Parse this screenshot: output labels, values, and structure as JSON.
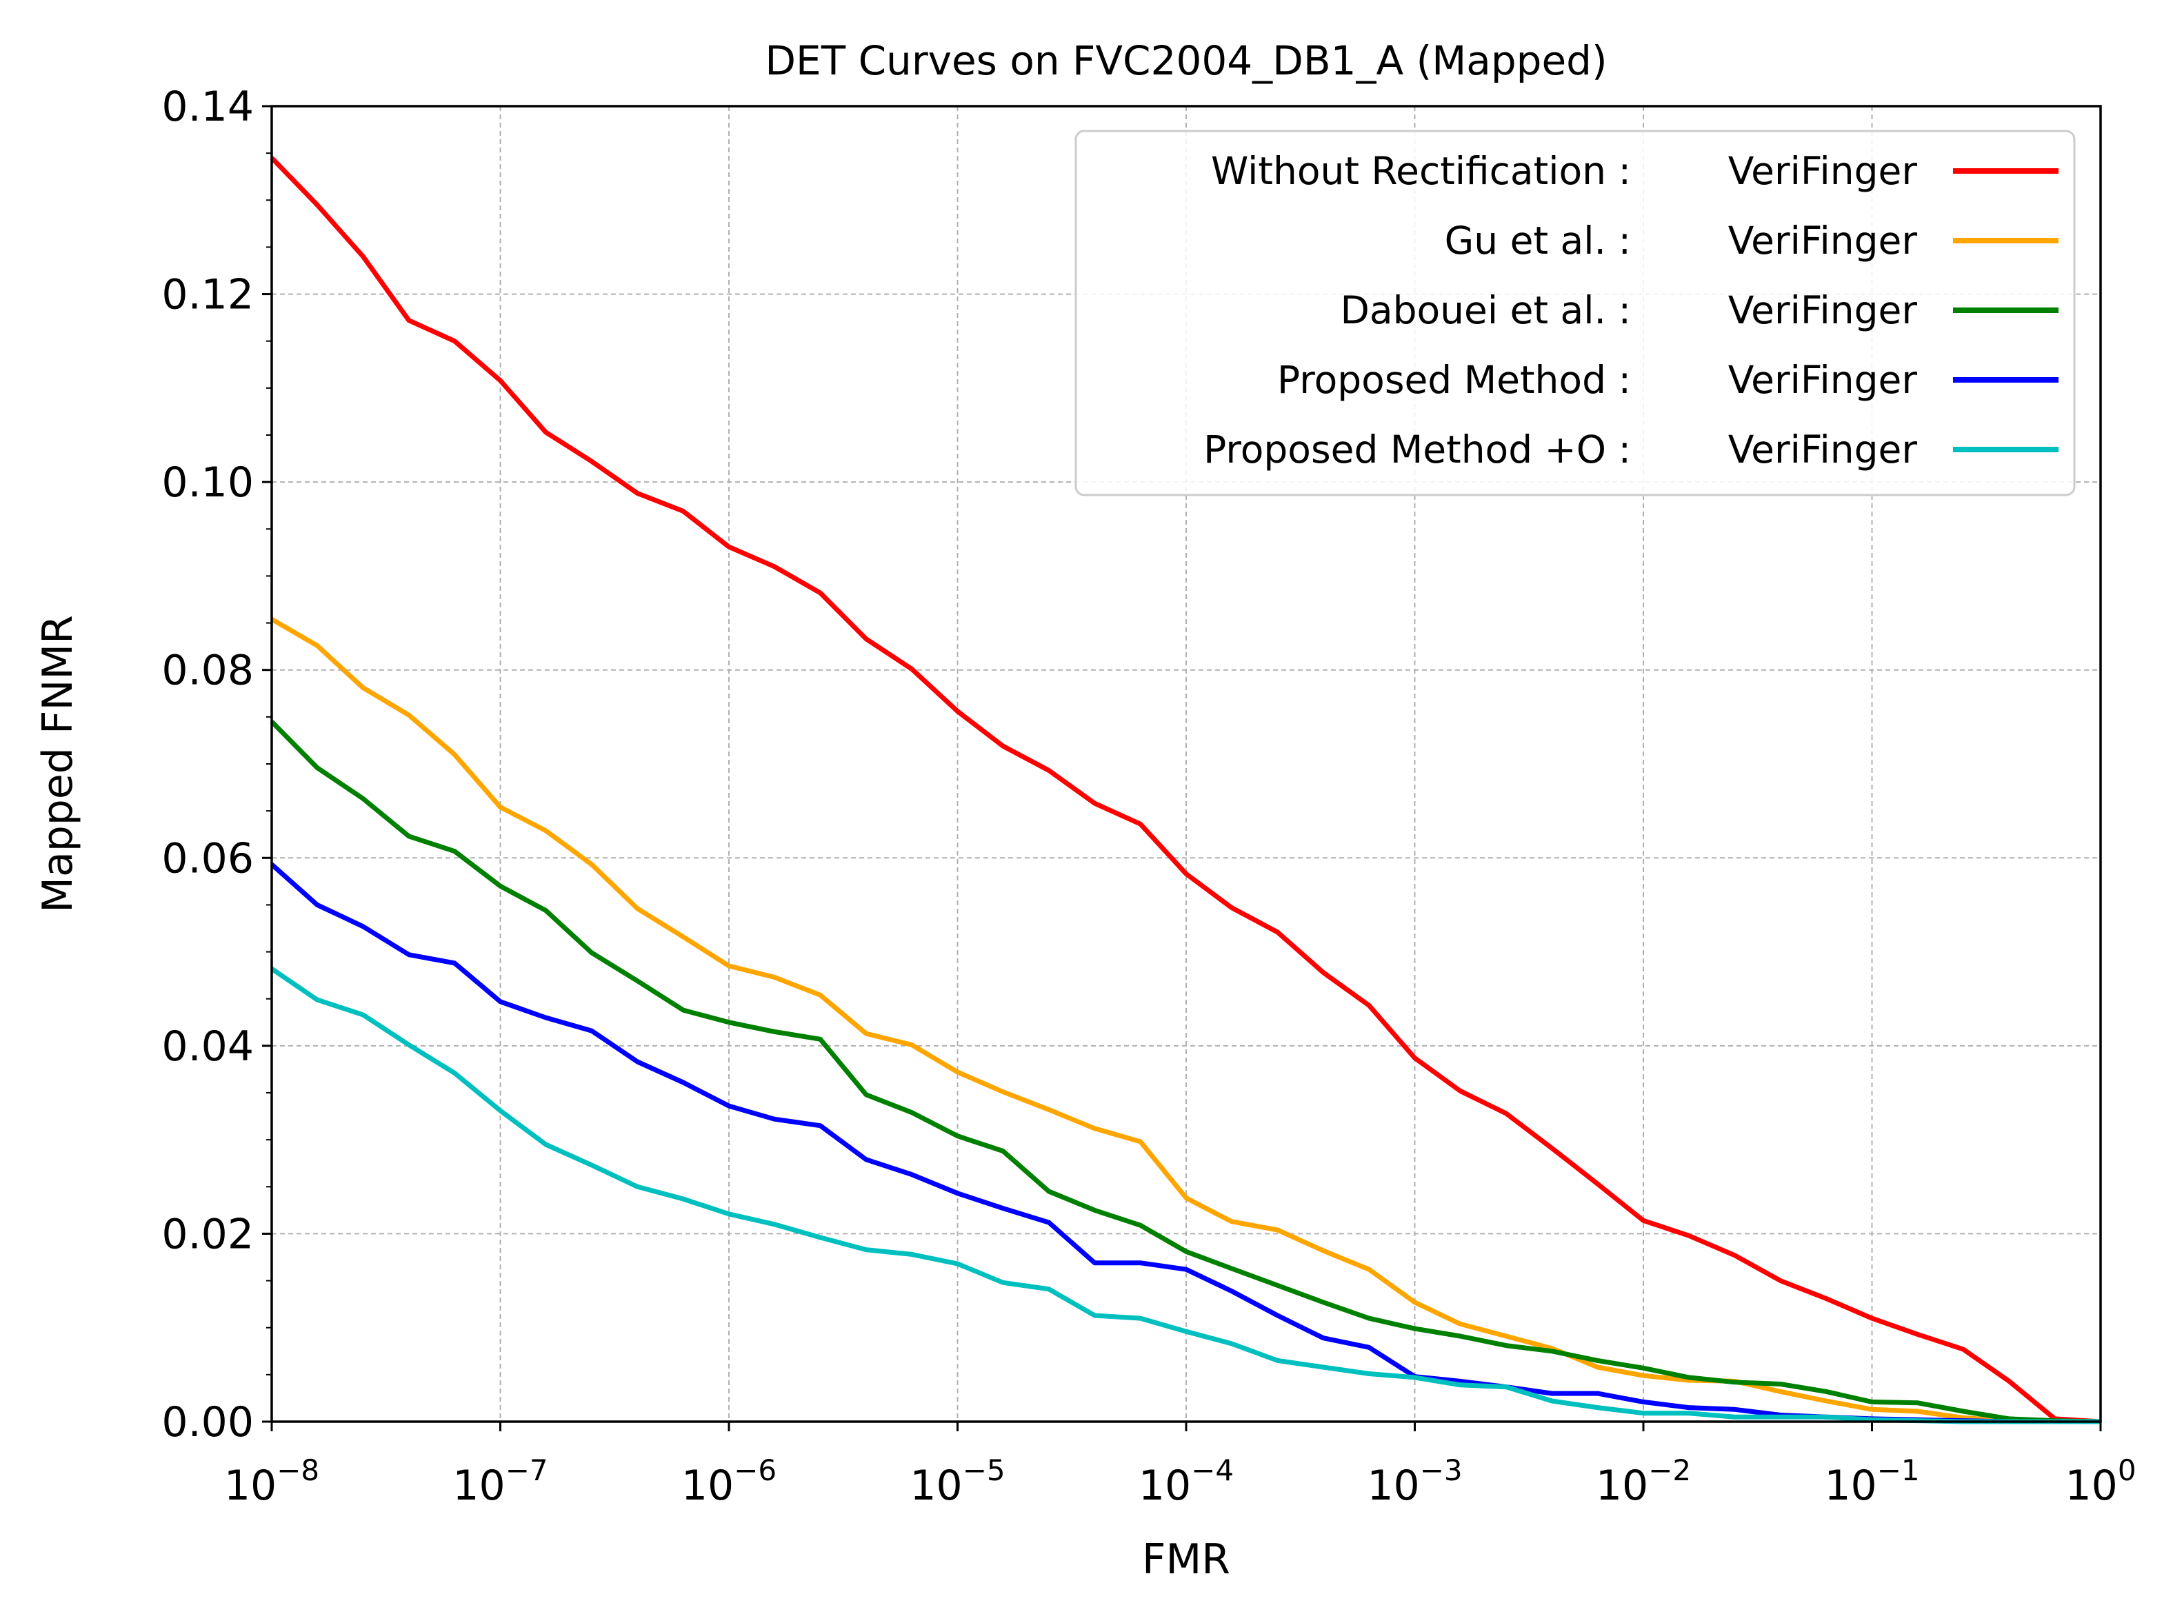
{
  "chart_data": {
    "type": "line",
    "title": "DET Curves on FVC2004_DB1_A (Mapped)",
    "xlabel": "FMR",
    "ylabel": "Mapped FNMR",
    "x_scale": "log",
    "xlim": [
      1e-08,
      1
    ],
    "ylim": [
      0,
      0.14
    ],
    "x_tick_labels": [
      {
        "base": "10",
        "exp": "−8"
      },
      {
        "base": "10",
        "exp": "−7"
      },
      {
        "base": "10",
        "exp": "−6"
      },
      {
        "base": "10",
        "exp": "−5"
      },
      {
        "base": "10",
        "exp": "−4"
      },
      {
        "base": "10",
        "exp": "−3"
      },
      {
        "base": "10",
        "exp": "−2"
      },
      {
        "base": "10",
        "exp": "−1"
      },
      {
        "base": "10",
        "exp": "0"
      }
    ],
    "y_tick_labels": [
      "0.00",
      "0.02",
      "0.04",
      "0.06",
      "0.08",
      "0.10",
      "0.12",
      "0.14"
    ],
    "grid": true,
    "legend_position": "top-right",
    "x": [
      1e-08,
      1.58e-08,
      2.51e-08,
      3.98e-08,
      6.31e-08,
      1e-07,
      1.58e-07,
      2.51e-07,
      3.98e-07,
      6.31e-07,
      1e-06,
      1.58e-06,
      2.51e-06,
      3.98e-06,
      6.31e-06,
      1e-05,
      1.58e-05,
      2.51e-05,
      3.98e-05,
      6.31e-05,
      0.0001,
      0.000158,
      0.000251,
      0.000398,
      0.000631,
      0.001,
      0.00158,
      0.00251,
      0.00398,
      0.00631,
      0.01,
      0.0158,
      0.0251,
      0.0398,
      0.0631,
      0.1,
      0.158,
      0.251,
      0.398,
      0.631,
      1
    ],
    "series": [
      {
        "name": "Without Rectification :",
        "matcher": "VeriFinger",
        "color": "#ff0000",
        "values": [
          0.1345,
          0.1295,
          0.124,
          0.1172,
          0.115,
          0.1108,
          0.1053,
          0.1022,
          0.0988,
          0.0969,
          0.0931,
          0.091,
          0.0882,
          0.0833,
          0.0801,
          0.0756,
          0.0719,
          0.0693,
          0.0658,
          0.0636,
          0.0583,
          0.0547,
          0.0521,
          0.0478,
          0.0443,
          0.0387,
          0.0352,
          0.0328,
          0.0291,
          0.0253,
          0.0214,
          0.0198,
          0.0177,
          0.015,
          0.0131,
          0.011,
          0.0093,
          0.0077,
          0.0043,
          0.0003,
          0.0
        ]
      },
      {
        "name": "Gu et al. :",
        "matcher": "VeriFinger",
        "color": "#ffa500",
        "values": [
          0.0854,
          0.0826,
          0.0781,
          0.0752,
          0.071,
          0.0654,
          0.0629,
          0.0593,
          0.0546,
          0.0516,
          0.0485,
          0.0473,
          0.0454,
          0.0413,
          0.0401,
          0.0372,
          0.0351,
          0.0332,
          0.0312,
          0.0298,
          0.0238,
          0.0213,
          0.0204,
          0.0182,
          0.0162,
          0.0127,
          0.0104,
          0.0091,
          0.0078,
          0.0058,
          0.0049,
          0.0044,
          0.0043,
          0.0032,
          0.0022,
          0.0013,
          0.0011,
          0.0004,
          0.0001,
          0.0,
          0.0
        ]
      },
      {
        "name": "Dabouei et al. :",
        "matcher": "VeriFinger",
        "color": "#008000",
        "values": [
          0.0745,
          0.0696,
          0.0663,
          0.0623,
          0.0607,
          0.057,
          0.0544,
          0.0499,
          0.0469,
          0.0438,
          0.0425,
          0.0415,
          0.0407,
          0.0348,
          0.0329,
          0.0304,
          0.0288,
          0.0245,
          0.0225,
          0.0209,
          0.0181,
          0.0163,
          0.0145,
          0.0127,
          0.011,
          0.0099,
          0.0091,
          0.0081,
          0.0075,
          0.0065,
          0.0057,
          0.0047,
          0.0042,
          0.004,
          0.0032,
          0.0021,
          0.002,
          0.0011,
          0.0003,
          0.0001,
          0.0
        ]
      },
      {
        "name": "Proposed Method :",
        "matcher": "VeriFinger",
        "color": "#0000ff",
        "values": [
          0.0593,
          0.055,
          0.0527,
          0.0497,
          0.0488,
          0.0447,
          0.043,
          0.0416,
          0.0383,
          0.0361,
          0.0336,
          0.0322,
          0.0315,
          0.0279,
          0.0263,
          0.0243,
          0.0227,
          0.0212,
          0.0169,
          0.0169,
          0.0162,
          0.0139,
          0.0113,
          0.0089,
          0.0079,
          0.0048,
          0.0043,
          0.0037,
          0.003,
          0.003,
          0.0021,
          0.0015,
          0.0013,
          0.0007,
          0.0005,
          0.0003,
          0.0002,
          0.0001,
          0.0,
          0.0,
          0.0
        ]
      },
      {
        "name": "Proposed Method +O :",
        "matcher": "VeriFinger",
        "color": "#00bfbf",
        "values": [
          0.0482,
          0.0449,
          0.0433,
          0.0401,
          0.0371,
          0.0331,
          0.0295,
          0.0273,
          0.025,
          0.0237,
          0.0221,
          0.021,
          0.0196,
          0.0183,
          0.0178,
          0.0168,
          0.0148,
          0.0141,
          0.0113,
          0.011,
          0.0096,
          0.0083,
          0.0065,
          0.0058,
          0.0051,
          0.0047,
          0.0039,
          0.0037,
          0.0022,
          0.0015,
          0.0009,
          0.0009,
          0.0005,
          0.0005,
          0.0005,
          0.0002,
          0.0001,
          0.0,
          0.0,
          0.0,
          0.0
        ]
      }
    ]
  }
}
